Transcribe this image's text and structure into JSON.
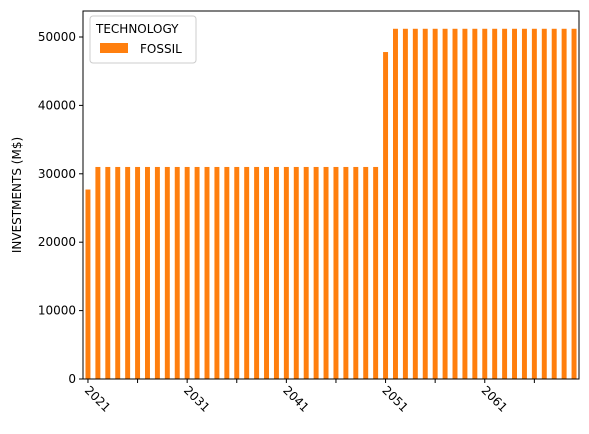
{
  "chart_data": {
    "type": "bar",
    "title": "",
    "xlabel": "",
    "ylabel": "INVESTMENTS (M$)",
    "ylim": [
      0,
      53800
    ],
    "yticks": [
      0,
      10000,
      20000,
      30000,
      40000,
      50000
    ],
    "x": [
      2021,
      2022,
      2023,
      2024,
      2025,
      2026,
      2027,
      2028,
      2029,
      2030,
      2031,
      2032,
      2033,
      2034,
      2035,
      2036,
      2037,
      2038,
      2039,
      2040,
      2041,
      2042,
      2043,
      2044,
      2045,
      2046,
      2047,
      2048,
      2049,
      2050,
      2051,
      2052,
      2053,
      2054,
      2055,
      2056,
      2057,
      2058,
      2059,
      2060,
      2061,
      2062,
      2063,
      2064,
      2065,
      2066,
      2067,
      2068,
      2069,
      2070
    ],
    "xtick_labels": [
      "2021",
      "2031",
      "2041",
      "2051",
      "2061"
    ],
    "xtick_label_rotation": -45,
    "series": [
      {
        "name": "FOSSIL",
        "color": "#ff7f0e",
        "values": [
          27700,
          31000,
          31000,
          31000,
          31000,
          31000,
          31000,
          31000,
          31000,
          31000,
          31000,
          31000,
          31000,
          31000,
          31000,
          31000,
          31000,
          31000,
          31000,
          31000,
          31000,
          31000,
          31000,
          31000,
          31000,
          31000,
          31000,
          31000,
          31000,
          31000,
          47800,
          51200,
          51200,
          51200,
          51200,
          51200,
          51200,
          51200,
          51200,
          51200,
          51200,
          51200,
          51200,
          51200,
          51200,
          51200,
          51200,
          51200,
          51200,
          51200
        ]
      }
    ],
    "legend": {
      "title": "TECHNOLOGY",
      "placement": "top-left"
    },
    "grid": false
  }
}
